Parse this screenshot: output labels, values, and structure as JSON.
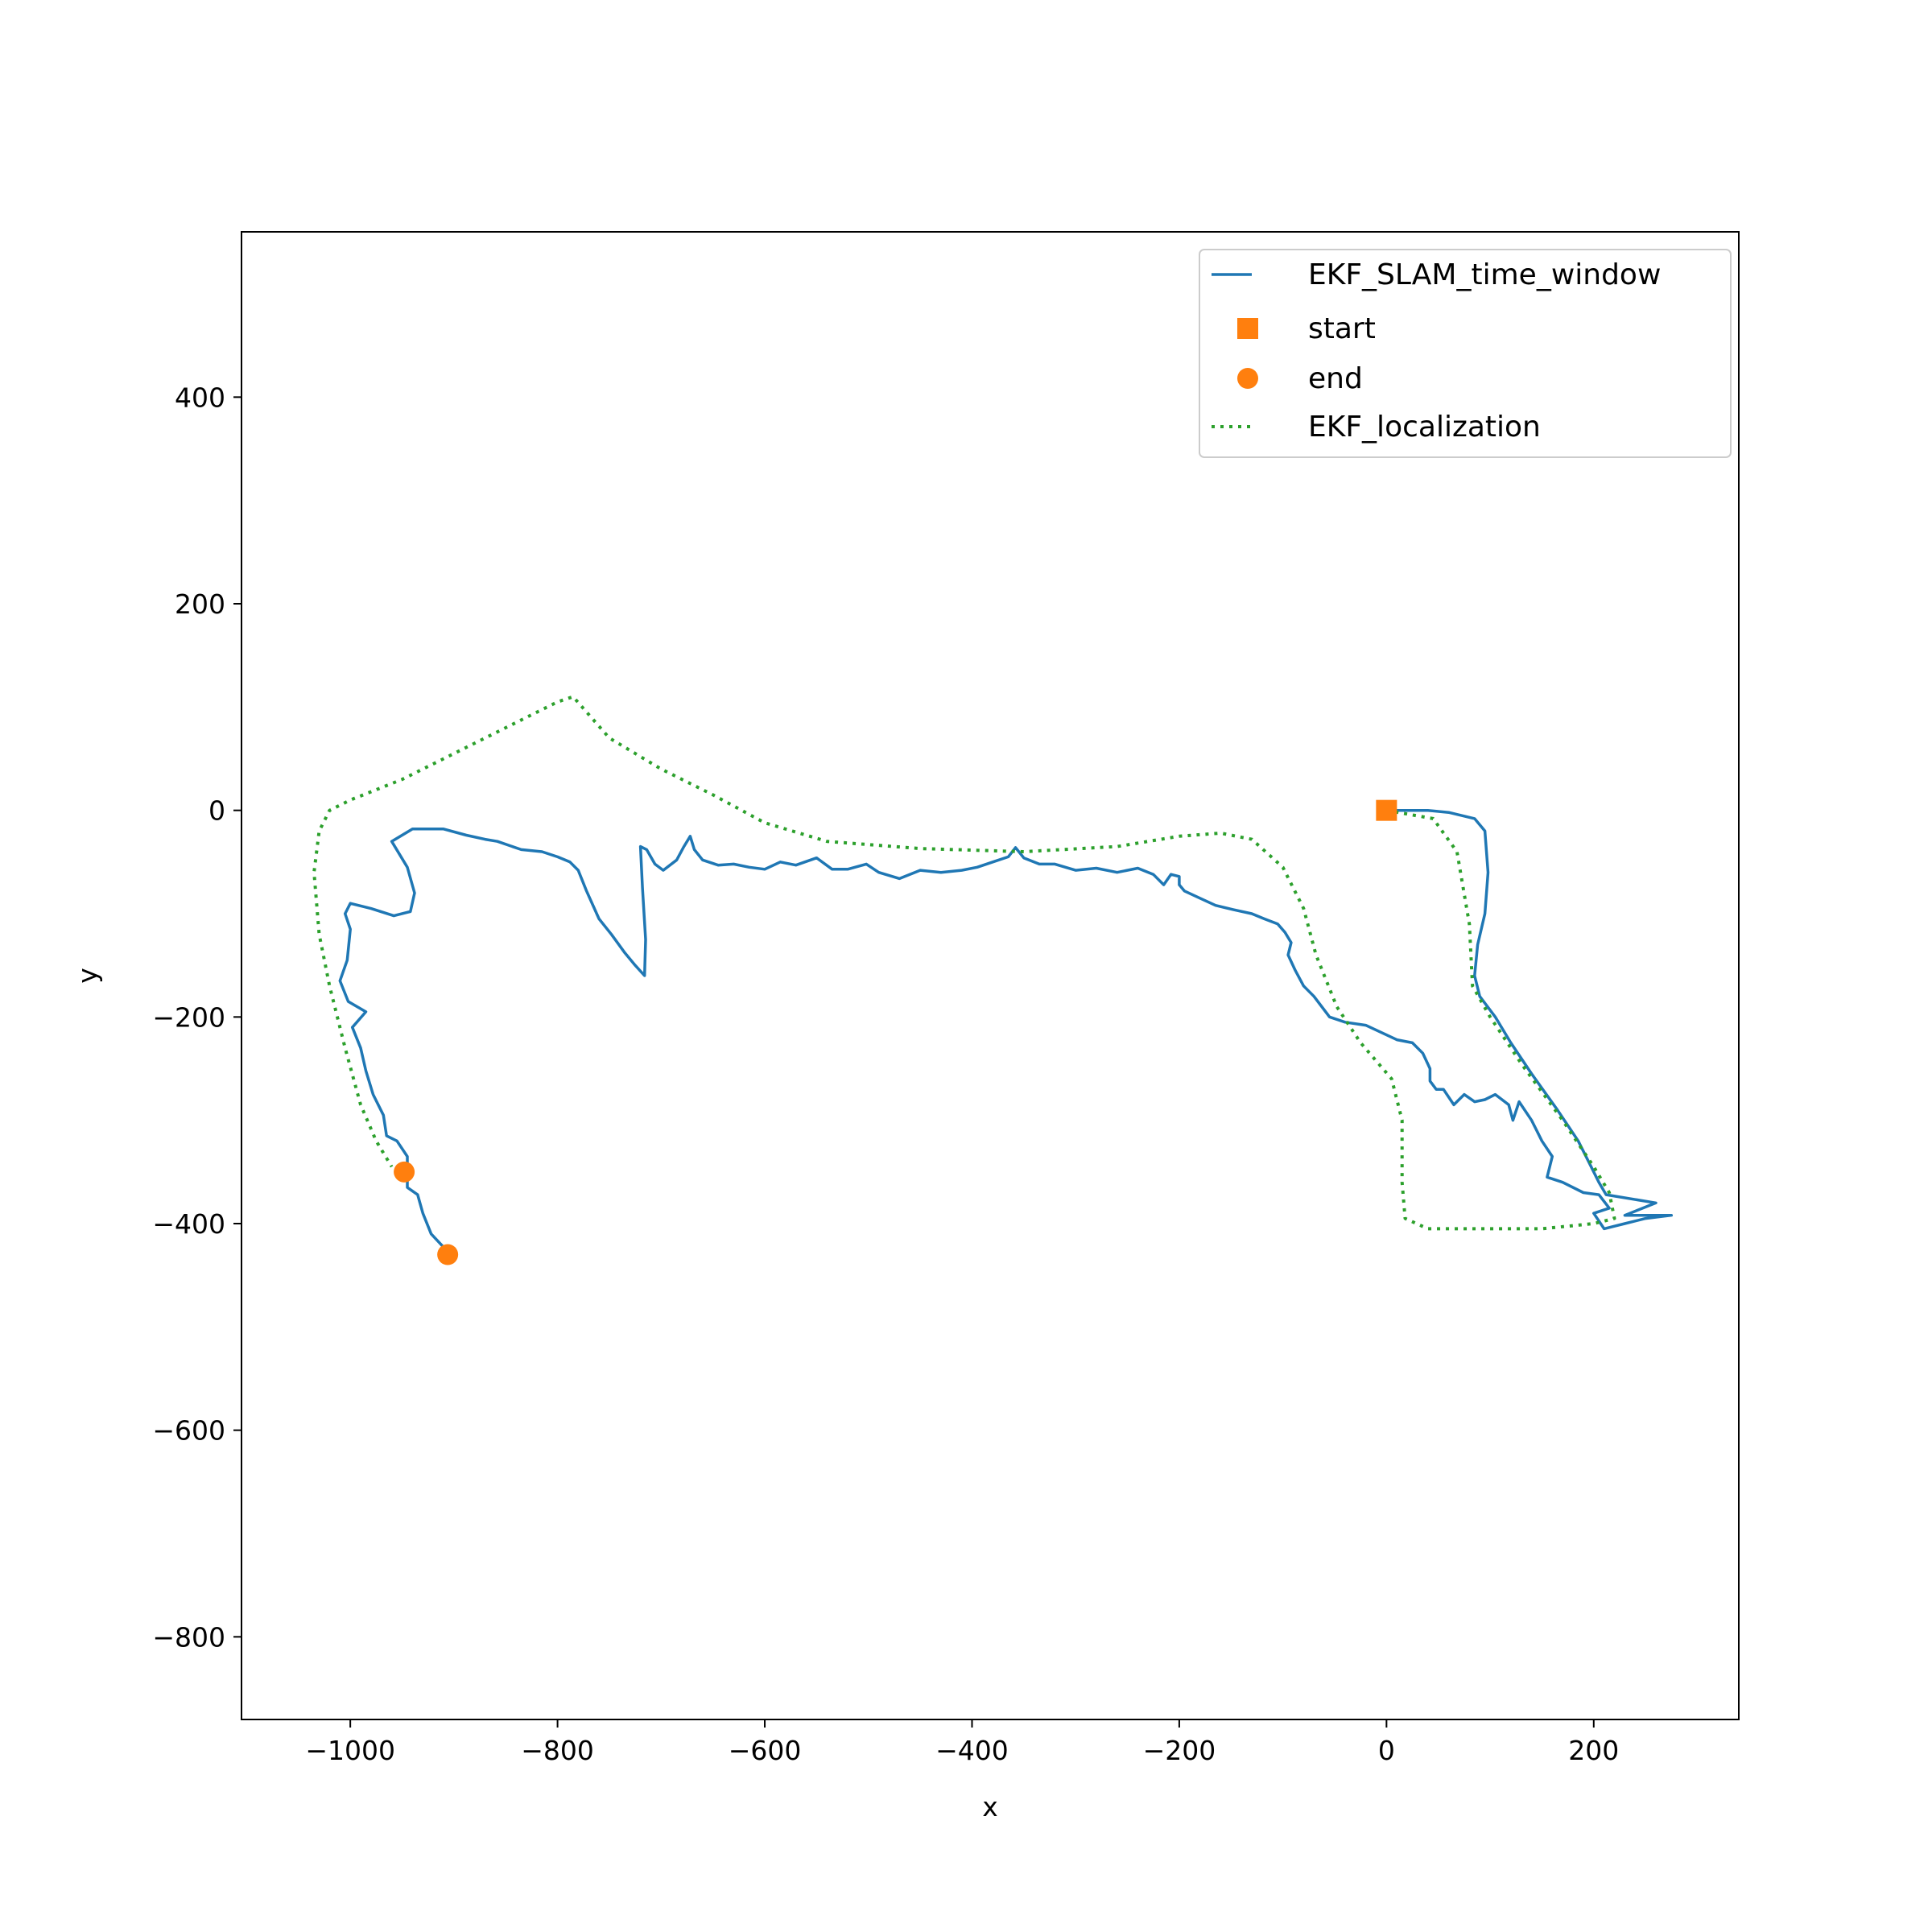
{
  "chart_data": {
    "type": "line",
    "title": "",
    "xlabel": "x",
    "ylabel": "y",
    "xlim": [
      -1105,
      340
    ],
    "ylim": [
      -880,
      560
    ],
    "xticks": [
      -1000,
      -800,
      -600,
      -400,
      -200,
      0,
      200
    ],
    "yticks": [
      -800,
      -600,
      -400,
      -200,
      0,
      200,
      400
    ],
    "xtick_labels": [
      "−1000",
      "−800",
      "−600",
      "−400",
      "−200",
      "0",
      "200"
    ],
    "ytick_labels": [
      "−800",
      "−600",
      "−400",
      "−200",
      "0",
      "200",
      "400"
    ],
    "grid": false,
    "legend_position": "top-right",
    "series": [
      {
        "name": "EKF_SLAM_time_window",
        "style": "solid",
        "color": "#1f77b4",
        "points": [
          [
            0,
            0
          ],
          [
            40,
            0
          ],
          [
            60,
            -2
          ],
          [
            85,
            -8
          ],
          [
            95,
            -20
          ],
          [
            98,
            -60
          ],
          [
            95,
            -100
          ],
          [
            88,
            -130
          ],
          [
            85,
            -160
          ],
          [
            90,
            -180
          ],
          [
            105,
            -200
          ],
          [
            120,
            -225
          ],
          [
            140,
            -255
          ],
          [
            165,
            -290
          ],
          [
            185,
            -320
          ],
          [
            195,
            -340
          ],
          [
            205,
            -360
          ],
          [
            212,
            -372
          ],
          [
            260,
            -380
          ],
          [
            230,
            -392
          ],
          [
            275,
            -392
          ],
          [
            250,
            -395
          ],
          [
            230,
            -400
          ],
          [
            210,
            -405
          ],
          [
            200,
            -390
          ],
          [
            215,
            -385
          ],
          [
            205,
            -372
          ],
          [
            190,
            -370
          ],
          [
            170,
            -360
          ],
          [
            155,
            -355
          ],
          [
            160,
            -335
          ],
          [
            150,
            -320
          ],
          [
            140,
            -300
          ],
          [
            128,
            -282
          ],
          [
            122,
            -300
          ],
          [
            118,
            -285
          ],
          [
            105,
            -275
          ],
          [
            95,
            -280
          ],
          [
            85,
            -282
          ],
          [
            75,
            -275
          ],
          [
            65,
            -285
          ],
          [
            55,
            -270
          ],
          [
            48,
            -270
          ],
          [
            42,
            -262
          ],
          [
            42,
            -250
          ],
          [
            35,
            -235
          ],
          [
            25,
            -225
          ],
          [
            10,
            -222
          ],
          [
            -5,
            -215
          ],
          [
            -20,
            -208
          ],
          [
            -40,
            -205
          ],
          [
            -55,
            -200
          ],
          [
            -70,
            -180
          ],
          [
            -80,
            -170
          ],
          [
            -88,
            -155
          ],
          [
            -95,
            -140
          ],
          [
            -92,
            -128
          ],
          [
            -98,
            -118
          ],
          [
            -105,
            -110
          ],
          [
            -118,
            -105
          ],
          [
            -130,
            -100
          ],
          [
            -148,
            -96
          ],
          [
            -165,
            -92
          ],
          [
            -180,
            -85
          ],
          [
            -195,
            -78
          ],
          [
            -200,
            -72
          ],
          [
            -200,
            -64
          ],
          [
            -208,
            -62
          ],
          [
            -215,
            -72
          ],
          [
            -225,
            -62
          ],
          [
            -240,
            -56
          ],
          [
            -260,
            -60
          ],
          [
            -280,
            -56
          ],
          [
            -300,
            -58
          ],
          [
            -320,
            -52
          ],
          [
            -335,
            -52
          ],
          [
            -350,
            -46
          ],
          [
            -358,
            -36
          ],
          [
            -365,
            -45
          ],
          [
            -380,
            -50
          ],
          [
            -395,
            -55
          ],
          [
            -410,
            -58
          ],
          [
            -430,
            -60
          ],
          [
            -450,
            -58
          ],
          [
            -470,
            -66
          ],
          [
            -490,
            -60
          ],
          [
            -502,
            -52
          ],
          [
            -520,
            -57
          ],
          [
            -535,
            -57
          ],
          [
            -550,
            -46
          ],
          [
            -570,
            -53
          ],
          [
            -585,
            -50
          ],
          [
            -600,
            -57
          ],
          [
            -615,
            -55
          ],
          [
            -630,
            -52
          ],
          [
            -645,
            -53
          ],
          [
            -660,
            -48
          ],
          [
            -668,
            -38
          ],
          [
            -672,
            -25
          ],
          [
            -678,
            -35
          ],
          [
            -685,
            -48
          ],
          [
            -698,
            -58
          ],
          [
            -706,
            -52
          ],
          [
            -714,
            -38
          ],
          [
            -720,
            -35
          ],
          [
            -718,
            -75
          ],
          [
            -715,
            -125
          ],
          [
            -716,
            -160
          ],
          [
            -725,
            -150
          ],
          [
            -735,
            -138
          ],
          [
            -748,
            -120
          ],
          [
            -760,
            -105
          ],
          [
            -772,
            -78
          ],
          [
            -780,
            -58
          ],
          [
            -788,
            -50
          ],
          [
            -800,
            -45
          ],
          [
            -815,
            -40
          ],
          [
            -835,
            -38
          ],
          [
            -858,
            -30
          ],
          [
            -870,
            -28
          ],
          [
            -888,
            -24
          ],
          [
            -910,
            -18
          ],
          [
            -940,
            -18
          ],
          [
            -960,
            -30
          ],
          [
            -945,
            -55
          ],
          [
            -938,
            -80
          ],
          [
            -942,
            -98
          ],
          [
            -958,
            -102
          ],
          [
            -980,
            -95
          ],
          [
            -1000,
            -90
          ],
          [
            -1005,
            -100
          ],
          [
            -1000,
            -115
          ],
          [
            -1003,
            -145
          ],
          [
            -1010,
            -165
          ],
          [
            -1002,
            -185
          ],
          [
            -985,
            -195
          ],
          [
            -998,
            -210
          ],
          [
            -990,
            -230
          ],
          [
            -985,
            -252
          ],
          [
            -978,
            -275
          ],
          [
            -968,
            -295
          ],
          [
            -965,
            -315
          ],
          [
            -955,
            -320
          ],
          [
            -945,
            -335
          ],
          [
            -945,
            -365
          ],
          [
            -935,
            -372
          ],
          [
            -930,
            -390
          ],
          [
            -922,
            -410
          ],
          [
            -908,
            -425
          ]
        ]
      },
      {
        "name": "EKF_localization",
        "style": "dotted",
        "color": "#2ca02c",
        "points": [
          [
            0,
            0
          ],
          [
            45,
            -8
          ],
          [
            68,
            -40
          ],
          [
            80,
            -110
          ],
          [
            83,
            -170
          ],
          [
            100,
            -200
          ],
          [
            130,
            -245
          ],
          [
            170,
            -300
          ],
          [
            200,
            -345
          ],
          [
            215,
            -370
          ],
          [
            220,
            -395
          ],
          [
            200,
            -400
          ],
          [
            150,
            -405
          ],
          [
            90,
            -405
          ],
          [
            40,
            -405
          ],
          [
            18,
            -395
          ],
          [
            15,
            -360
          ],
          [
            15,
            -300
          ],
          [
            5,
            -260
          ],
          [
            -25,
            -225
          ],
          [
            -48,
            -190
          ],
          [
            -68,
            -140
          ],
          [
            -80,
            -95
          ],
          [
            -100,
            -55
          ],
          [
            -130,
            -28
          ],
          [
            -160,
            -22
          ],
          [
            -200,
            -25
          ],
          [
            -260,
            -35
          ],
          [
            -350,
            -40
          ],
          [
            -450,
            -37
          ],
          [
            -540,
            -30
          ],
          [
            -600,
            -12
          ],
          [
            -650,
            15
          ],
          [
            -700,
            40
          ],
          [
            -750,
            70
          ],
          [
            -785,
            110
          ],
          [
            -800,
            105
          ],
          [
            -850,
            80
          ],
          [
            -900,
            55
          ],
          [
            -950,
            30
          ],
          [
            -1000,
            10
          ],
          [
            -1020,
            0
          ],
          [
            -1030,
            -20
          ],
          [
            -1035,
            -60
          ],
          [
            -1030,
            -120
          ],
          [
            -1020,
            -170
          ],
          [
            -1005,
            -230
          ],
          [
            -990,
            -285
          ],
          [
            -975,
            -320
          ],
          [
            -960,
            -345
          ]
        ]
      }
    ],
    "markers": [
      {
        "name": "start",
        "shape": "square",
        "color": "#ff7f0e",
        "points": [
          [
            0,
            0
          ]
        ]
      },
      {
        "name": "end",
        "shape": "circle",
        "color": "#ff7f0e",
        "points": [
          [
            -948,
            -350
          ],
          [
            -906,
            -430
          ]
        ]
      }
    ],
    "legend": [
      {
        "label": "EKF_SLAM_time_window",
        "kind": "solid-line",
        "color": "#1f77b4"
      },
      {
        "label": "start",
        "kind": "square",
        "color": "#ff7f0e"
      },
      {
        "label": "end",
        "kind": "circle",
        "color": "#ff7f0e"
      },
      {
        "label": "EKF_localization",
        "kind": "dotted-line",
        "color": "#2ca02c"
      }
    ]
  }
}
